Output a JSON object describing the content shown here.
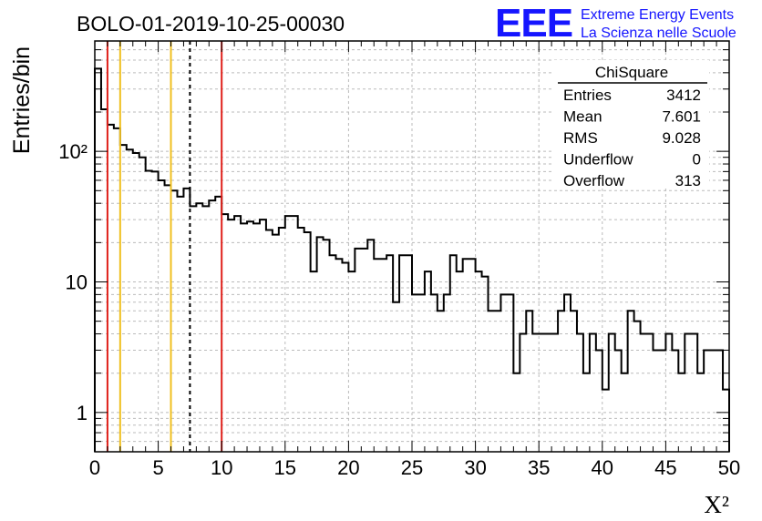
{
  "header": {
    "run_title": "BOLO-01-2019-10-25-00030",
    "logo_text": "EEE",
    "logo_line1": "Extreme Energy Events",
    "logo_line2": "La Scienza nelle Scuole",
    "logo_color": "#1515ff"
  },
  "stats": {
    "title": "ChiSquare",
    "rows": [
      {
        "label": "Entries",
        "value": "3412"
      },
      {
        "label": "Mean",
        "value": "7.601"
      },
      {
        "label": "RMS",
        "value": "9.028"
      },
      {
        "label": "Underflow",
        "value": "0"
      },
      {
        "label": "Overflow",
        "value": "313"
      }
    ]
  },
  "chart_data": {
    "type": "histogram",
    "title": "BOLO-01-2019-10-25-00030",
    "xlabel": "X²",
    "ylabel": "Entries/bin",
    "xlim": [
      0,
      50
    ],
    "ylim": [
      0.5,
      700
    ],
    "yscale": "log",
    "grid": true,
    "bin_width": 0.5,
    "x_ticks": [
      "0",
      "5",
      "10",
      "15",
      "20",
      "25",
      "30",
      "35",
      "40",
      "45",
      "50"
    ],
    "y_ticks": [
      {
        "v": 1,
        "label": "1"
      },
      {
        "v": 10,
        "label": "10"
      },
      {
        "v": 100,
        "label": "10²"
      }
    ],
    "values": [
      430,
      210,
      160,
      150,
      112,
      103,
      97,
      90,
      71,
      70,
      60,
      55,
      50,
      45,
      52,
      38,
      40,
      38,
      42,
      45,
      33,
      30,
      32,
      28,
      29,
      28,
      30,
      25,
      23,
      26,
      32,
      32,
      26,
      24,
      12,
      22,
      21,
      16,
      15,
      14,
      12,
      18,
      18,
      21,
      15,
      15,
      16,
      7,
      16,
      16,
      8,
      8,
      12,
      8,
      6,
      8,
      16,
      12,
      15,
      15,
      12,
      11,
      6,
      6,
      8,
      8,
      2,
      4,
      6,
      4,
      4,
      4,
      4,
      6,
      8,
      6,
      4,
      2,
      4,
      3,
      1.5,
      4,
      3,
      2,
      6,
      5,
      4,
      4,
      3,
      3,
      4,
      3,
      2,
      4,
      4,
      2,
      3,
      3,
      3,
      1.5
    ],
    "markers": [
      {
        "x": 1,
        "color": "#e0201a",
        "style": "solid"
      },
      {
        "x": 2,
        "color": "#f0c020",
        "style": "solid"
      },
      {
        "x": 6,
        "color": "#f0c020",
        "style": "solid"
      },
      {
        "x": 7.5,
        "color": "#000000",
        "style": "dashed"
      },
      {
        "x": 10,
        "color": "#e0201a",
        "style": "solid"
      }
    ]
  }
}
